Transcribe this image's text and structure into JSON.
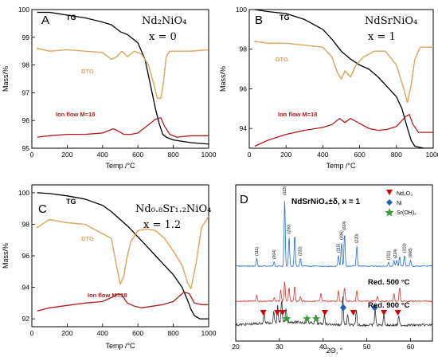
{
  "chart_data": [
    {
      "type": "line",
      "panel_letter": "A",
      "formula": "Nd₂NiO₄",
      "x_value_label": "x = 0",
      "xlabel": "Temp /°C",
      "ylabel": "Mass/%",
      "xlim": [
        0,
        1000
      ],
      "ylim": [
        95,
        100
      ],
      "x_ticks": [
        0,
        200,
        400,
        600,
        800,
        1000
      ],
      "y_ticks": [
        95,
        96,
        97,
        98,
        99,
        100
      ],
      "series": [
        {
          "name": "TG",
          "color": "#000000",
          "style": "solid",
          "x": [
            30,
            100,
            150,
            200,
            300,
            400,
            450,
            500,
            540,
            560,
            600,
            640,
            680,
            700,
            720,
            740,
            760,
            800,
            900,
            1000
          ],
          "y": [
            99.9,
            99.9,
            99.85,
            99.8,
            99.7,
            99.55,
            99.45,
            99.2,
            99.1,
            99.0,
            98.8,
            98.2,
            97.0,
            96.4,
            95.9,
            95.5,
            95.4,
            95.3,
            95.2,
            95.15
          ]
        },
        {
          "name": "DTG",
          "color": "#d9a45a",
          "style": "dotted",
          "x": [
            30,
            100,
            200,
            300,
            400,
            450,
            480,
            510,
            540,
            580,
            620,
            660,
            690,
            710,
            730,
            745,
            760,
            780,
            820,
            900,
            1000
          ],
          "y": [
            98.6,
            98.5,
            98.55,
            98.5,
            98.45,
            98.2,
            98.3,
            98.5,
            98.3,
            98.5,
            98.4,
            98.0,
            97.3,
            96.8,
            96.8,
            97.4,
            98.3,
            98.5,
            98.5,
            98.5,
            98.55
          ]
        },
        {
          "name": "Ion flow M=18",
          "color": "#b01c1c",
          "style": "solid",
          "x": [
            30,
            100,
            200,
            300,
            400,
            460,
            480,
            520,
            560,
            600,
            650,
            700,
            730,
            750,
            780,
            820,
            900,
            1000
          ],
          "y": [
            95.4,
            95.45,
            95.5,
            95.5,
            95.55,
            95.7,
            95.65,
            95.5,
            95.5,
            95.55,
            95.8,
            96.05,
            96.1,
            95.8,
            95.5,
            95.4,
            95.45,
            95.45
          ]
        }
      ]
    },
    {
      "type": "line",
      "panel_letter": "B",
      "formula": "NdSrNiO₄",
      "x_value_label": "x = 1",
      "xlabel": "Temp /°C",
      "ylabel": "Mass/%",
      "xlim": [
        0,
        1000
      ],
      "ylim": [
        93,
        100
      ],
      "x_ticks": [
        0,
        200,
        400,
        600,
        800,
        1000
      ],
      "y_ticks": [
        94,
        96,
        98,
        100
      ],
      "series": [
        {
          "name": "TG",
          "color": "#000000",
          "style": "solid",
          "x": [
            30,
            100,
            200,
            300,
            400,
            450,
            500,
            550,
            600,
            650,
            700,
            750,
            800,
            830,
            860,
            880,
            900,
            950,
            1000
          ],
          "y": [
            100.0,
            99.9,
            99.8,
            99.5,
            99.0,
            98.5,
            97.9,
            97.5,
            97.2,
            97.0,
            96.6,
            96.1,
            95.6,
            95.0,
            94.0,
            93.4,
            93.1,
            93.0,
            93.0
          ]
        },
        {
          "name": "DTG",
          "color": "#d9a45a",
          "style": "dotted",
          "x": [
            30,
            100,
            200,
            300,
            400,
            450,
            480,
            500,
            520,
            550,
            580,
            620,
            680,
            740,
            800,
            840,
            860,
            880,
            900,
            930,
            1000
          ],
          "y": [
            98.4,
            98.3,
            98.3,
            98.2,
            98.1,
            97.6,
            96.8,
            96.5,
            96.9,
            96.6,
            97.2,
            97.6,
            97.9,
            97.9,
            97.2,
            96.0,
            95.3,
            96.2,
            97.5,
            98.1,
            98.1
          ]
        },
        {
          "name": "Ion flow M=18",
          "color": "#b01c1c",
          "style": "solid",
          "x": [
            30,
            100,
            200,
            300,
            400,
            450,
            490,
            520,
            550,
            600,
            650,
            700,
            750,
            800,
            850,
            870,
            890,
            920,
            1000
          ],
          "y": [
            93.1,
            93.4,
            93.7,
            93.9,
            94.05,
            94.2,
            94.5,
            94.3,
            94.5,
            94.25,
            94.0,
            93.9,
            93.95,
            94.1,
            94.6,
            94.7,
            94.2,
            93.8,
            93.8
          ]
        }
      ]
    },
    {
      "type": "line",
      "panel_letter": "C",
      "formula": "Nd₀.₈Sr₁.₂NiO₄",
      "x_value_label": "x = 1.2",
      "xlabel": "Temp /°C",
      "ylabel": "Mass/%",
      "xlim": [
        0,
        1000
      ],
      "ylim": [
        91.5,
        100.5
      ],
      "x_ticks": [
        0,
        200,
        400,
        600,
        800,
        1000
      ],
      "y_ticks": [
        92,
        94,
        96,
        98,
        100
      ],
      "series": [
        {
          "name": "TG",
          "color": "#000000",
          "style": "solid",
          "x": [
            30,
            100,
            200,
            300,
            400,
            450,
            500,
            550,
            600,
            650,
            700,
            750,
            800,
            850,
            880,
            900,
            920,
            950,
            1000
          ],
          "y": [
            100.0,
            99.95,
            99.8,
            99.6,
            99.2,
            98.8,
            98.3,
            97.8,
            97.2,
            96.6,
            96.0,
            95.4,
            94.8,
            94.0,
            93.2,
            92.6,
            92.2,
            92.0,
            92.0
          ]
        },
        {
          "name": "DTG",
          "color": "#d9a45a",
          "style": "dotted",
          "x": [
            30,
            100,
            200,
            300,
            400,
            450,
            480,
            500,
            520,
            540,
            560,
            600,
            650,
            700,
            750,
            800,
            850,
            880,
            900,
            930,
            960,
            1000
          ],
          "y": [
            97.8,
            98.3,
            98.1,
            98.0,
            97.4,
            97.1,
            95.3,
            94.2,
            94.7,
            96.0,
            96.9,
            97.6,
            97.7,
            97.6,
            97.1,
            96.3,
            95.4,
            94.3,
            93.9,
            95.6,
            97.8,
            98.5
          ]
        },
        {
          "name": "Ion flow M=18",
          "color": "#b01c1c",
          "style": "solid",
          "x": [
            30,
            100,
            200,
            300,
            400,
            450,
            490,
            510,
            540,
            580,
            620,
            680,
            740,
            800,
            860,
            890,
            920,
            960,
            1000
          ],
          "y": [
            92.5,
            92.7,
            92.85,
            93.0,
            93.1,
            93.35,
            93.6,
            93.5,
            93.0,
            92.8,
            92.7,
            92.8,
            92.9,
            93.1,
            93.7,
            93.6,
            93.0,
            92.9,
            92.9
          ]
        }
      ]
    },
    {
      "type": "line",
      "panel_letter": "D",
      "formula": "NdSrNiO₄±δ, x = 1",
      "xlabel": "2Θ, °",
      "xlim": [
        20,
        65
      ],
      "x_ticks": [
        20,
        30,
        40,
        50,
        60
      ],
      "legend": [
        {
          "label": "Nd₂O₃",
          "marker": "triangle-down",
          "color": "#cc0000"
        },
        {
          "label": "Ni",
          "marker": "diamond",
          "color": "#1f5fbf"
        },
        {
          "label": "Sr(OH)₂",
          "marker": "star",
          "color": "#3a9a3a"
        }
      ],
      "series": [
        {
          "name": "",
          "color": "#1f6fd6",
          "peaks_2theta": [
            24.8,
            28.8,
            31.2,
            32.2,
            33.5,
            34.8,
            43.5,
            44.2,
            44.9,
            47.7,
            55.0,
            56.2,
            56.8,
            57.5,
            58.6,
            60.0
          ]
        },
        {
          "name": "Red. 500 °C",
          "color": "#e03030",
          "peaks_2theta": [
            24.8,
            28.8,
            30.3,
            31.2,
            32.2,
            33.5,
            34.8,
            39.5,
            43.5,
            44.9,
            47.7,
            52.4,
            56.2,
            57.5
          ]
        },
        {
          "name": "Red. 900 °C",
          "color": "#2e2e2e",
          "peaks_2theta": [
            26.5,
            28.7,
            29.6,
            30.5,
            31.5,
            36.4,
            38.3,
            40.3,
            44.5,
            45.6,
            47.6,
            51.9,
            53.9,
            57.3
          ]
        }
      ],
      "peak_labels": [
        {
          "label": "(111)",
          "x": 24.8
        },
        {
          "label": "(004)",
          "x": 28.8
        },
        {
          "label": "(113)",
          "x": 31.2
        },
        {
          "label": "(200)",
          "x": 32.2
        },
        {
          "label": "(202)",
          "x": 34.8
        },
        {
          "label": "(115)",
          "x": 43.5
        },
        {
          "label": "(006)",
          "x": 44.2
        },
        {
          "label": "(024)",
          "x": 44.9
        },
        {
          "label": "(220)",
          "x": 47.7
        },
        {
          "label": "(311)",
          "x": 55.0
        },
        {
          "label": "(224)",
          "x": 56.5
        },
        {
          "label": "(313)",
          "x": 58.6
        },
        {
          "label": "(008)",
          "x": 60.0
        }
      ],
      "markers_900": [
        {
          "type": "triangle",
          "x": 26.3
        },
        {
          "type": "triangle",
          "x": 29.5
        },
        {
          "type": "triangle",
          "x": 30.7
        },
        {
          "type": "star",
          "x": 31.7
        },
        {
          "type": "star",
          "x": 36.3
        },
        {
          "type": "star",
          "x": 38.4
        },
        {
          "type": "triangle",
          "x": 40.4
        },
        {
          "type": "diamond",
          "x": 44.6
        },
        {
          "type": "triangle",
          "x": 46.9
        },
        {
          "type": "diamond",
          "x": 51.8
        },
        {
          "type": "triangle",
          "x": 53.9
        },
        {
          "type": "triangle",
          "x": 57.1
        }
      ]
    }
  ]
}
